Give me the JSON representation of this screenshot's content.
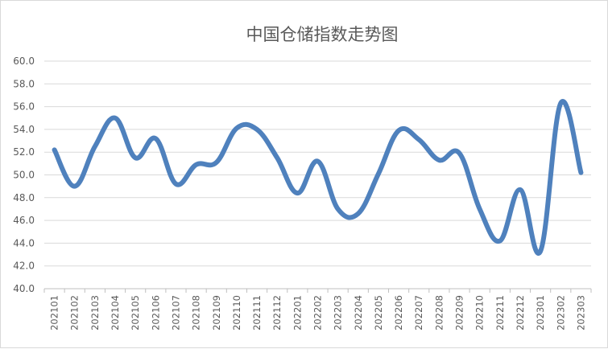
{
  "chart_data": {
    "type": "line",
    "title": "中国仓储指数走势图",
    "xlabel": "",
    "ylabel": "",
    "ylim": [
      40,
      60
    ],
    "y_ticks": [
      "40.0",
      "42.0",
      "44.0",
      "46.0",
      "48.0",
      "50.0",
      "52.0",
      "54.0",
      "56.0",
      "58.0",
      "60.0"
    ],
    "grid": true,
    "legend": "none",
    "line_color": "#4f81bd",
    "x": [
      "202101",
      "202102",
      "202103",
      "202104",
      "202105",
      "202106",
      "202107",
      "202108",
      "202109",
      "202110",
      "202111",
      "202112",
      "202201",
      "202202",
      "202203",
      "202204",
      "202205",
      "202206",
      "202207",
      "202208",
      "202209",
      "202210",
      "202211",
      "202212",
      "202301",
      "202302",
      "202303"
    ],
    "series": [
      {
        "values": [
          52.2,
          49.0,
          52.5,
          55.0,
          51.5,
          53.2,
          49.2,
          50.9,
          51.1,
          54.1,
          54.0,
          51.5,
          48.4,
          51.2,
          47.0,
          46.6,
          50.1,
          53.9,
          53.1,
          51.3,
          51.9,
          47.0,
          44.2,
          48.7,
          43.3,
          56.3,
          50.2
        ]
      }
    ]
  }
}
